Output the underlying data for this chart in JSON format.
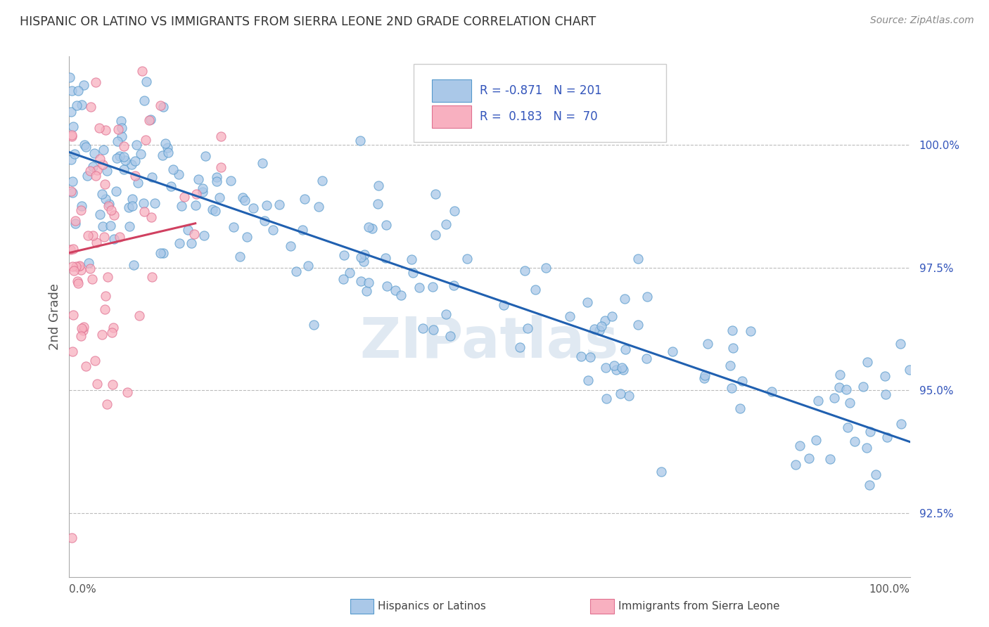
{
  "title": "HISPANIC OR LATINO VS IMMIGRANTS FROM SIERRA LEONE 2ND GRADE CORRELATION CHART",
  "source": "Source: ZipAtlas.com",
  "ylabel": "2nd Grade",
  "xmin": 0.0,
  "xmax": 100.0,
  "ymin": 91.2,
  "ymax": 101.8,
  "yticks_right": [
    92.5,
    95.0,
    97.5,
    100.0
  ],
  "ytick_labels_right": [
    "92.5%",
    "95.0%",
    "97.5%",
    "100.0%"
  ],
  "legend_blue_r": "-0.871",
  "legend_blue_n": "201",
  "legend_pink_r": "0.183",
  "legend_pink_n": "70",
  "legend_label_blue": "Hispanics or Latinos",
  "legend_label_pink": "Immigrants from Sierra Leone",
  "blue_color": "#aac8e8",
  "blue_edge_color": "#5599cc",
  "blue_line_color": "#2060b0",
  "pink_color": "#f8b0c0",
  "pink_edge_color": "#e07090",
  "pink_line_color": "#d04060",
  "watermark": "ZIPatlas",
  "background_color": "#ffffff",
  "grid_color": "#bbbbbb",
  "title_color": "#333333",
  "axis_label_color": "#555555",
  "right_tick_color": "#3355bb",
  "seed": 12,
  "blue_intercept": 99.85,
  "blue_slope": -0.059,
  "blue_noise_std": 0.9,
  "pink_intercept": 97.8,
  "pink_slope": 0.04,
  "pink_noise_std": 1.8
}
